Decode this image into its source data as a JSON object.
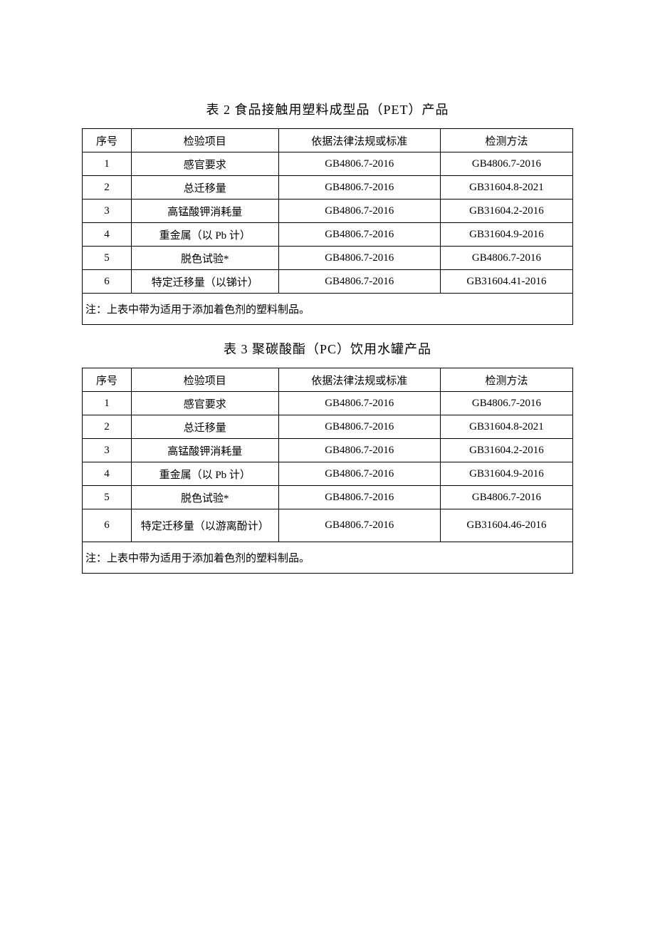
{
  "tables": [
    {
      "title": "表 2 食品接触用塑料成型品（PET）产品",
      "columns": [
        "序号",
        "检验项目",
        "依据法律法规或标准",
        "检测方法"
      ],
      "rows": [
        [
          "1",
          "感官要求",
          "GB4806.7-2016",
          "GB4806.7-2016"
        ],
        [
          "2",
          "总迁移量",
          "GB4806.7-2016",
          "GB31604.8-2021"
        ],
        [
          "3",
          "高锰酸钾消耗量",
          "GB4806.7-2016",
          "GB31604.2-2016"
        ],
        [
          "4",
          "重金属（以 Pb 计）",
          "GB4806.7-2016",
          "GB31604.9-2016"
        ],
        [
          "5",
          "脱色试验*",
          "GB4806.7-2016",
          "GB4806.7-2016"
        ],
        [
          "6",
          "特定迁移量（以锑计）",
          "GB4806.7-2016",
          "GB31604.41-2016"
        ]
      ],
      "note": "注：上表中带为适用于添加着色剂的塑料制品。"
    },
    {
      "title": "表 3 聚碳酸酯（PC）饮用水罐产品",
      "columns": [
        "序号",
        "检验项目",
        "依据法律法规或标准",
        "检测方法"
      ],
      "rows": [
        [
          "1",
          "感官要求",
          "GB4806.7-2016",
          "GB4806.7-2016"
        ],
        [
          "2",
          "总迁移量",
          "GB4806.7-2016",
          "GB31604.8-2021"
        ],
        [
          "3",
          "高锰酸钾消耗量",
          "GB4806.7-2016",
          "GB31604.2-2016"
        ],
        [
          "4",
          "重金属（以 Pb 计）",
          "GB4806.7-2016",
          "GB31604.9-2016"
        ],
        [
          "5",
          "脱色试验*",
          "GB4806.7-2016",
          "GB4806.7-2016"
        ],
        [
          "6",
          "特定迁移量（以游离酚计）",
          "GB4806.7-2016",
          "GB31604.46-2016"
        ]
      ],
      "note": "注：上表中带为适用于添加着色剂的塑料制品。"
    }
  ],
  "style": {
    "page_bg": "#ffffff",
    "text_color": "#000000",
    "border_color": "#000000",
    "title_fontsize": 18,
    "cell_fontsize": 15,
    "col_widths_pct": [
      10,
      30,
      33,
      27
    ],
    "font_family": "SimSun"
  }
}
